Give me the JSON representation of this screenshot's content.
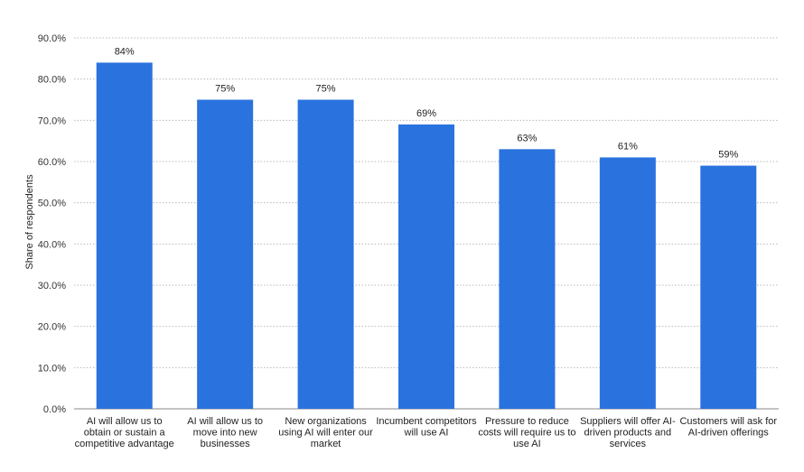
{
  "chart_data": {
    "type": "bar",
    "categories": [
      "AI will allow us to obtain or sustain a competitive advantage",
      "AI will allow us to move into new businesses",
      "New organizations using AI will enter our market",
      "Incumbent competitors will use AI",
      "Pressure to reduce costs will require us to use AI",
      "Suppliers will offer AI-driven products and services",
      "Customers will ask for AI-driven offerings"
    ],
    "category_lines": [
      [
        "AI will allow us to",
        "obtain or sustain a",
        "competitive advantage"
      ],
      [
        "AI will allow us to",
        "move into new",
        "businesses"
      ],
      [
        "New organizations",
        "using AI will enter our",
        "market"
      ],
      [
        "Incumbent competitors",
        "will use AI"
      ],
      [
        "Pressure to reduce",
        "costs will require us to",
        "use AI"
      ],
      [
        "Suppliers will offer AI-",
        "driven products and",
        "services"
      ],
      [
        "Customers will ask for",
        "AI-driven offerings"
      ]
    ],
    "values": [
      84,
      75,
      75,
      69,
      63,
      61,
      59
    ],
    "data_labels": [
      "84%",
      "75%",
      "75%",
      "69%",
      "63%",
      "61%",
      "59%"
    ],
    "ylabel": "Share of respondents",
    "xlabel": "",
    "ylim": [
      0,
      90
    ],
    "y_ticks": [
      0,
      10,
      20,
      30,
      40,
      50,
      60,
      70,
      80,
      90
    ],
    "y_tick_labels": [
      "0.0%",
      "10.0%",
      "20.0%",
      "30.0%",
      "40.0%",
      "50.0%",
      "60.0%",
      "70.0%",
      "80.0%",
      "90.0%"
    ],
    "grid": true,
    "bar_color": "#2a72de"
  }
}
